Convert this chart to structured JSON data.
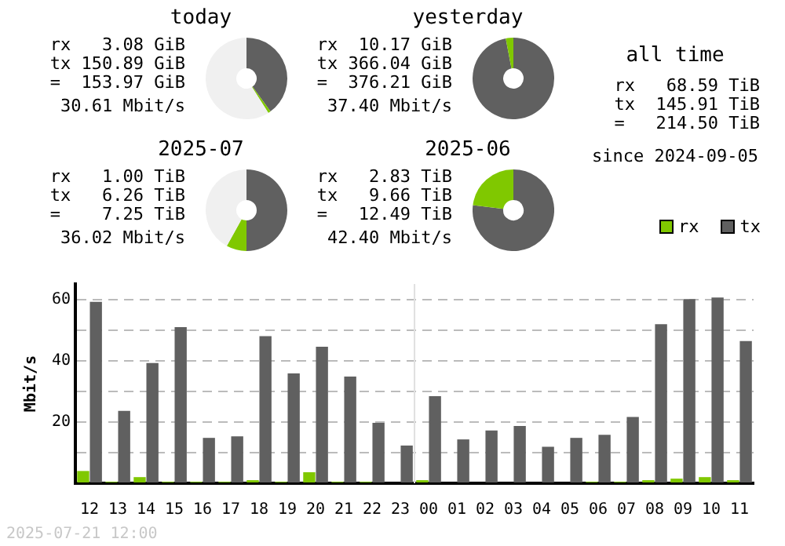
{
  "chart_data": [
    {
      "type": "donut",
      "title": "today",
      "categories": [
        null,
        null,
        null
      ],
      "values": [
        40,
        1,
        59
      ],
      "colors": [
        "#606060",
        "#80c800",
        "#f0f0f0"
      ],
      "annotations": [
        "rx   3.08 GiB",
        "tx 150.89 GiB",
        "=  153.97 GiB",
        "30.61 Mbit/s"
      ]
    },
    {
      "type": "donut",
      "title": "yesterday",
      "categories": [
        null,
        null,
        null
      ],
      "values": [
        97,
        3,
        0
      ],
      "colors": [
        "#606060",
        "#80c800",
        "#f0f0f0"
      ],
      "annotations": [
        "rx  10.17 GiB",
        "tx 366.04 GiB",
        "=  376.21 GiB",
        "37.40 Mbit/s"
      ]
    },
    {
      "type": "donut",
      "title": "2025-07",
      "categories": [
        null,
        null,
        null
      ],
      "values": [
        50,
        8,
        42
      ],
      "colors": [
        "#606060",
        "#80c800",
        "#f0f0f0"
      ],
      "annotations": [
        "rx   1.00 TiB",
        "tx   6.26 TiB",
        "=    7.25 TiB",
        "36.02 Mbit/s"
      ]
    },
    {
      "type": "donut",
      "title": "2025-06",
      "categories": [
        null,
        null,
        null
      ],
      "values": [
        77,
        23,
        0
      ],
      "colors": [
        "#606060",
        "#80c800",
        "#f0f0f0"
      ],
      "annotations": [
        "rx   2.83 TiB",
        "tx   9.66 TiB",
        "=   12.49 TiB",
        "42.40 Mbit/s"
      ]
    },
    {
      "type": "other",
      "title": "all time",
      "annotations": [
        "rx   68.59 TiB",
        "tx  145.91 TiB",
        "=   214.50 TiB",
        "since 2024-09-05"
      ]
    },
    {
      "type": "bar",
      "ylabel": "Mbit/s",
      "categories": [
        "12",
        "13",
        "14",
        "15",
        "16",
        "17",
        "18",
        "19",
        "20",
        "21",
        "22",
        "23",
        "00",
        "01",
        "02",
        "03",
        "04",
        "05",
        "06",
        "07",
        "08",
        "09",
        "10",
        "11"
      ],
      "series": [
        {
          "name": "rx",
          "color": "#80c800",
          "values": [
            4.0,
            0.5,
            2.0,
            0.5,
            0.5,
            0.5,
            1.0,
            0.5,
            3.6,
            0.5,
            0.5,
            null,
            1.0,
            null,
            null,
            null,
            null,
            null,
            0.5,
            0.5,
            1.0,
            1.5,
            2.0,
            1.0
          ]
        },
        {
          "name": "tx",
          "color": "#606060",
          "values": [
            59.2,
            23.6,
            39.2,
            50.9,
            14.8,
            15.3,
            48,
            35.8,
            44.5,
            34.8,
            19.7,
            12.3,
            28.4,
            14.3,
            17.2,
            18.7,
            11.9,
            14.8,
            15.8,
            21.6,
            51.9,
            60.1,
            60.6,
            46.4
          ]
        }
      ],
      "ylim": [
        0,
        65
      ],
      "yticks": [
        {
          "value": 0,
          "label": null
        },
        {
          "value": 10,
          "label": null
        },
        20,
        {
          "value": 30,
          "label": null
        },
        40,
        {
          "value": 50,
          "label": null
        },
        60
      ],
      "grid": "y",
      "legend": "top right",
      "ref_lines": [
        {
          "axis": "x",
          "value": "00",
          "color": "#e0e0e0"
        }
      ],
      "annotations": [
        "2025-07-21 12:00"
      ]
    }
  ]
}
